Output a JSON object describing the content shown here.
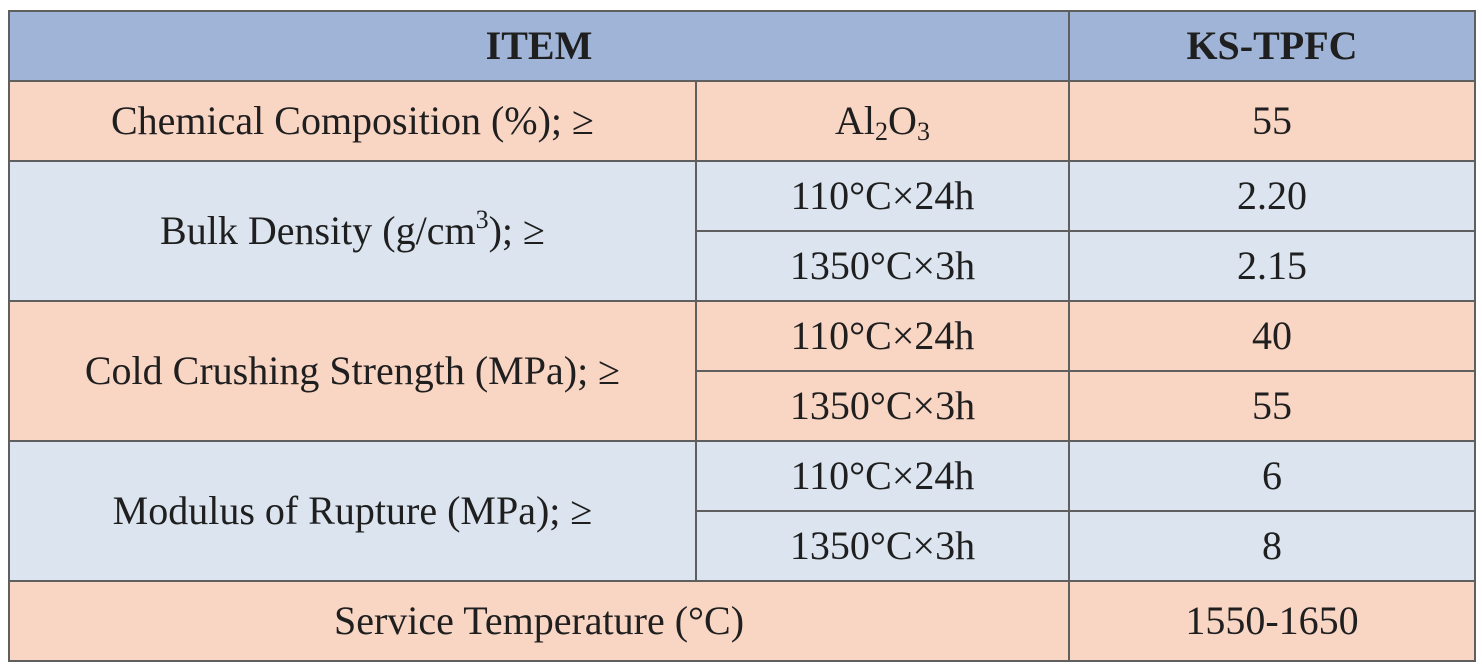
{
  "header": {
    "item": "ITEM",
    "product": "KS-TPFC"
  },
  "chemical": {
    "label": "Chemical Composition (%); ≥",
    "formula_part1": "Al",
    "formula_sub1": "2",
    "formula_part2": "O",
    "formula_sub2": "3",
    "value": "55"
  },
  "bulk_density": {
    "label_before": "Bulk Density (g/cm",
    "label_sup": "3",
    "label_after": "); ≥",
    "rows": [
      {
        "condition": "110°C×24h",
        "value": "2.20"
      },
      {
        "condition": "1350°C×3h",
        "value": "2.15"
      }
    ]
  },
  "cold_crushing": {
    "label": "Cold Crushing Strength (MPa); ≥",
    "rows": [
      {
        "condition": "110°C×24h",
        "value": "40"
      },
      {
        "condition": "1350°C×3h",
        "value": "55"
      }
    ]
  },
  "modulus": {
    "label": "Modulus of Rupture (MPa); ≥",
    "rows": [
      {
        "condition": "110°C×24h",
        "value": "6"
      },
      {
        "condition": "1350°C×3h",
        "value": "8"
      }
    ]
  },
  "service_temperature": {
    "label": "Service Temperature (°C)",
    "value": "1550-1650"
  },
  "colors": {
    "header": "#9fb4d6",
    "salmon": "#f9d5c4",
    "blue": "#dbe4ef",
    "border": "#5f5f5f"
  }
}
